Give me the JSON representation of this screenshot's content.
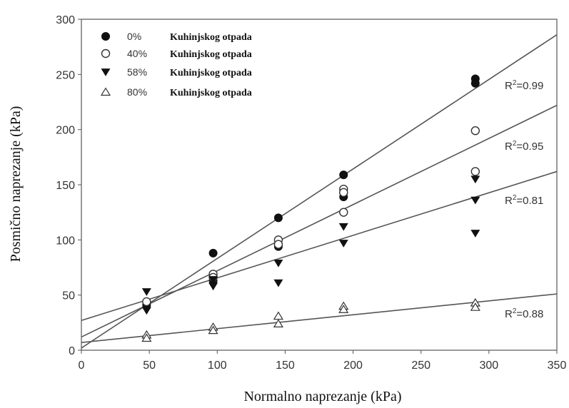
{
  "chart_data": {
    "type": "scatter",
    "xlabel": "Normalno naprezanje (kPa)",
    "ylabel": "Posmično naprezanje (kPa)",
    "xlim": [
      0,
      350
    ],
    "ylim": [
      0,
      300
    ],
    "xticks": [
      0,
      50,
      100,
      150,
      200,
      250,
      300,
      350
    ],
    "yticks": [
      0,
      50,
      100,
      150,
      200,
      250,
      300
    ],
    "grid": false,
    "legend_position": "top-left",
    "series": [
      {
        "name": "0%",
        "legend_text": "Kuhinjskog otpada",
        "marker": "filled-circle",
        "x": [
          48,
          97,
          97,
          145,
          145,
          193,
          193,
          290,
          290
        ],
        "y": [
          41,
          88,
          63,
          120,
          94,
          159,
          139,
          246,
          242
        ],
        "fit": {
          "x": [
            0,
            350
          ],
          "y": [
            2,
            286
          ]
        },
        "r2_label": "R",
        "r2_sup": "2",
        "r2_value": "=0.99"
      },
      {
        "name": "40%",
        "legend_text": "Kuhinjskog otpada",
        "marker": "open-circle",
        "x": [
          48,
          97,
          97,
          145,
          145,
          193,
          193,
          193,
          290,
          290
        ],
        "y": [
          44,
          69,
          66,
          100,
          96,
          146,
          143,
          125,
          199,
          162
        ],
        "fit": {
          "x": [
            0,
            350
          ],
          "y": [
            12,
            222
          ]
        },
        "r2_label": "R",
        "r2_sup": "2",
        "r2_value": "=0.95"
      },
      {
        "name": "58%",
        "legend_text": "Kuhinjskog otpada",
        "marker": "filled-triangle-down",
        "x": [
          48,
          48,
          97,
          97,
          145,
          145,
          193,
          193,
          290,
          290,
          290
        ],
        "y": [
          53,
          36,
          64,
          58,
          79,
          61,
          112,
          97,
          155,
          136,
          106
        ],
        "fit": {
          "x": [
            0,
            350
          ],
          "y": [
            27,
            162
          ]
        },
        "r2_label": "R",
        "r2_sup": "2",
        "r2_value": "=0.81"
      },
      {
        "name": "80%",
        "legend_text": "Kuhinjskog otpada",
        "marker": "open-triangle-up",
        "x": [
          48,
          48,
          97,
          97,
          145,
          145,
          193,
          193,
          290,
          290
        ],
        "y": [
          14,
          11,
          21,
          18,
          31,
          24,
          40,
          37,
          43,
          39
        ],
        "fit": {
          "x": [
            0,
            350
          ],
          "y": [
            7,
            51
          ]
        },
        "r2_label": "R",
        "r2_sup": "2",
        "r2_value": "=0.88"
      }
    ]
  }
}
